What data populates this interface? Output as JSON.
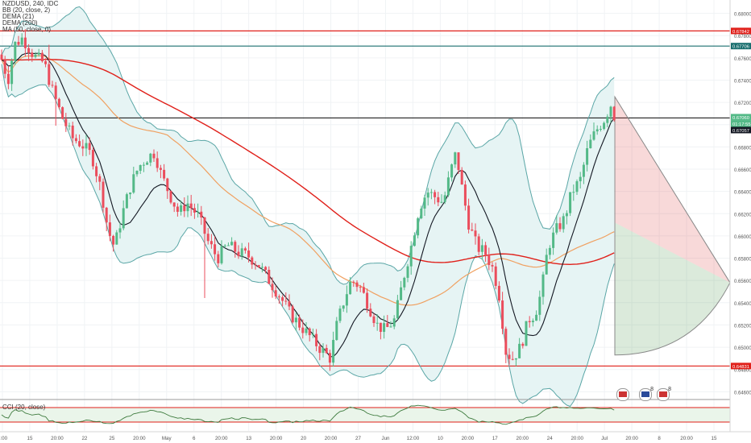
{
  "legend": {
    "symbol_line": "NZDUSD, 240, IDC",
    "bb": "BB (20, close, 2)",
    "dema1": "DEMA (21)",
    "dema2": "DEMA (200)",
    "ma": "MA (50, close, 0)"
  },
  "cci_label": "CCI (20, close)",
  "colors": {
    "up": "#53b987",
    "down": "#eb4d5c",
    "bb_band": "#5aa6a6",
    "bb_fill": "#e6f4f4",
    "dema21": "#131722",
    "dema200": "#e0201a",
    "ma50": "#f0a060",
    "support": "#e0201a",
    "resistance_teal": "#1a6f6f",
    "current_line": "#222222"
  },
  "price_axis": {
    "ticks": [
      "0.68000",
      "0.67800",
      "0.67600",
      "0.67400",
      "0.67200",
      "0.67000",
      "0.66800",
      "0.66600",
      "0.66400",
      "0.66200",
      "0.66000",
      "0.65800",
      "0.65600",
      "0.65400",
      "0.65200",
      "0.65000",
      "0.64800",
      "0.64600"
    ],
    "badges": [
      {
        "text": "0.67842",
        "color": "#e0201a"
      },
      {
        "text": "0.67706",
        "color": "#1a6f6f"
      },
      {
        "text": "0.67060",
        "color": "#53b987"
      },
      {
        "text": "01:17:55",
        "color": "#53b987"
      },
      {
        "text": "0.67057",
        "color": "#131722"
      },
      {
        "text": "0.64831",
        "color": "#e0201a"
      }
    ]
  },
  "cci_axis": {
    "ticks": [
      "250.00",
      "0.00",
      "-250.00"
    ]
  },
  "time_axis": {
    "labels": [
      "8:00",
      "15",
      "20:00",
      "22",
      "25",
      "20:00",
      "May",
      "6",
      "20:00",
      "13",
      "20:00",
      "20",
      "20:00",
      "27",
      "Jun",
      "12:00",
      "10",
      "20:00",
      "17",
      "20:00",
      "24",
      "20:00",
      "Jul",
      "20:00",
      "8",
      "20:00",
      "15"
    ]
  },
  "chart_data": {
    "type": "candlestick",
    "symbol": "NZDUSD",
    "interval": "240",
    "ylim": [
      0.6453,
      0.6812
    ],
    "horizontal_levels": [
      0.67842,
      0.67706,
      0.6706,
      0.64831
    ],
    "key_points": [
      {
        "label": "start",
        "price": 0.6763
      },
      {
        "label": "early high",
        "price": 0.6784
      },
      {
        "label": "mid-April low",
        "price": 0.6582
      },
      {
        "label": "late-April high",
        "price": 0.6683
      },
      {
        "label": "May low",
        "price": 0.6482
      },
      {
        "label": "June 10 high",
        "price": 0.6685
      },
      {
        "label": "June 17 low",
        "price": 0.6485
      },
      {
        "label": "current",
        "price": 0.6706
      },
      {
        "label": "recent high",
        "price": 0.6725
      }
    ],
    "cci_range": [
      -250,
      250
    ]
  }
}
